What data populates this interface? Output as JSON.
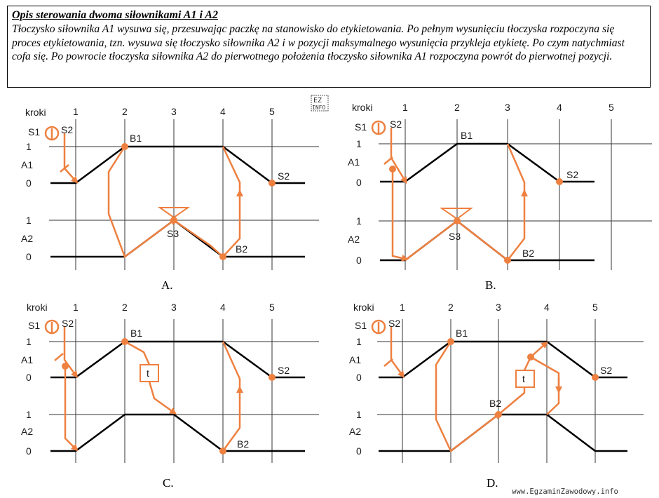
{
  "description": {
    "title": "Opis sterowania dwoma siłownikami A1 i A2",
    "text": "Tłoczysko siłownika A1 wysuwa się, przesuwając paczkę na stanowisko do etykietowania. Po pełnym wysunięciu tłoczyska rozpoczyna się proces etykietowania, tzn. wysuwa się tłoczysko siłownika A2 i w pozycji maksymalnego wysunięcia przykleja etykietę. Po czym natychmiast cofa się. Po powrocie tłoczyska siłownika A2 do pierwotnego położenia tłoczysko siłownika A1 rozpoczyna powrót do pierwotnej pozycji."
  },
  "common": {
    "kroki": "kroki",
    "steps": [
      "1",
      "2",
      "3",
      "4",
      "5"
    ],
    "row_a1": "A1",
    "row_a2": "A2",
    "one": "1",
    "zero": "0",
    "s1": "S1",
    "s2": "S2",
    "s3": "S3",
    "b1": "B1",
    "b2": "B2",
    "t": "t"
  },
  "diagrams": [
    {
      "caption": "A."
    },
    {
      "caption": "B."
    },
    {
      "caption": "C."
    },
    {
      "caption": "D."
    }
  ],
  "colors": {
    "signal": "#ee8040",
    "line": "#000000",
    "grid": "#333333"
  },
  "watermark": {
    "badge_top": "EZ",
    "badge_bottom": "INFO",
    "url": "www.EgzaminZawodowy.info"
  }
}
